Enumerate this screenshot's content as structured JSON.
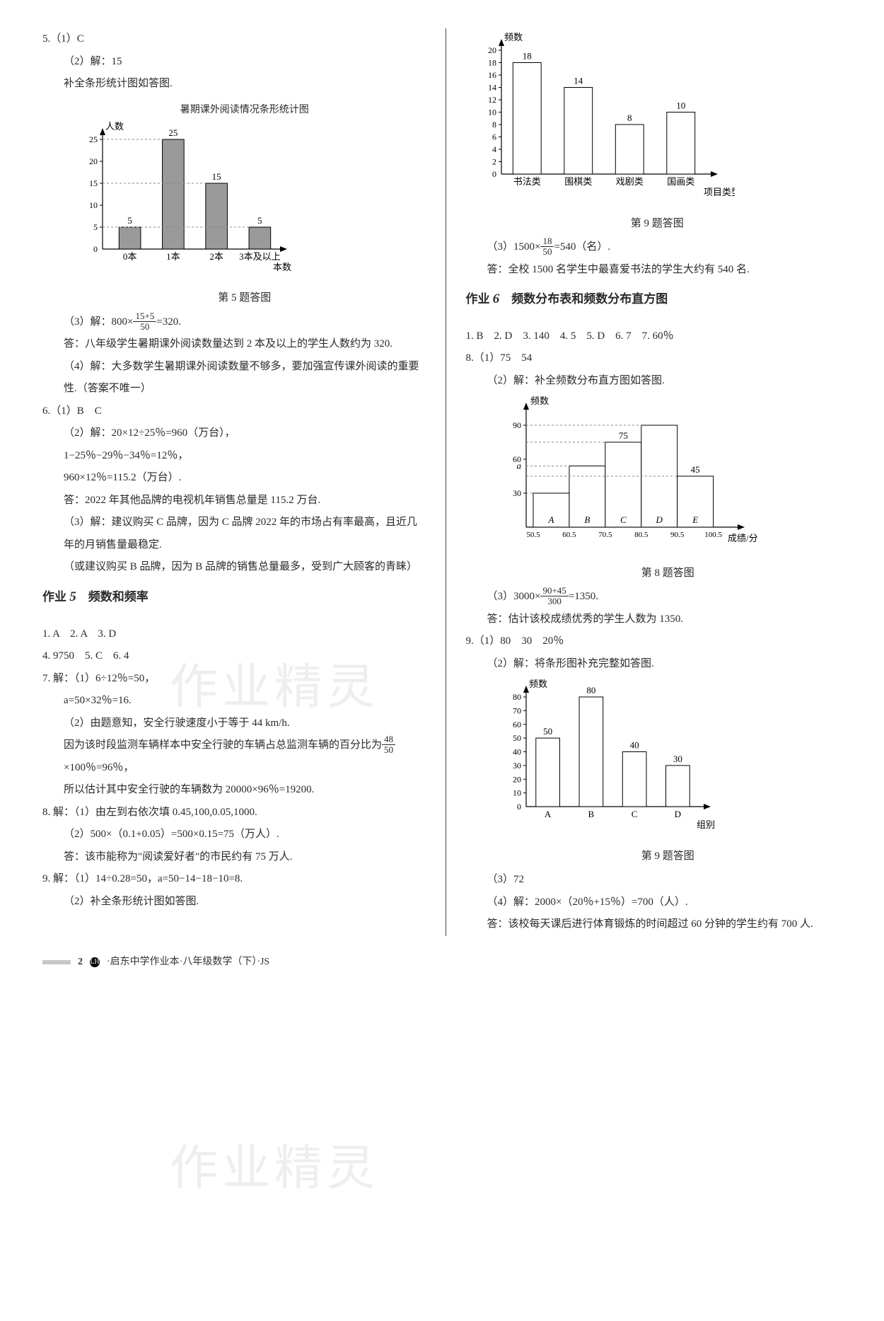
{
  "left": {
    "q5_1": "5.（1）C",
    "q5_2a": "（2）解：15",
    "q5_2b": "补全条形统计图如答图.",
    "chart5": {
      "title": "暑期课外阅读情况条形统计图",
      "y_label": "人数",
      "x_label": "本数",
      "y_max": 25,
      "y_ticks": [
        5,
        10,
        15,
        20,
        25
      ],
      "categories": [
        "0本",
        "1本",
        "2本",
        "3本及以上"
      ],
      "values": [
        5,
        25,
        15,
        5
      ],
      "bar_color": "#9a9a9a",
      "caption": "第 5 题答图"
    },
    "q5_3a": "（3）解：800×",
    "q5_3_frac_n": "15+5",
    "q5_3_frac_d": "50",
    "q5_3b": "=320.",
    "q5_3c": "答：八年级学生暑期课外阅读数量达到 2 本及以上的学生人数约为 320.",
    "q5_4": "（4）解：大多数学生暑期课外阅读数量不够多，要加强宣传课外阅读的重要性.（答案不唯一）",
    "q6_1": "6.（1）B　C",
    "q6_2a": "（2）解：20×12÷25％=960（万台），",
    "q6_2b": "1−25％−29％−34％=12％，",
    "q6_2c": "960×12％=115.2（万台）.",
    "q6_2d": "答：2022 年其他品牌的电视机年销售总量是 115.2 万台.",
    "q6_3a": "（3）解：建议购买 C 品牌，因为 C 品牌 2022 年的市场占有率最高，且近几年的月销售量最稳定.",
    "q6_3b": "（或建议购买 B 品牌，因为 B 品牌的销售总量最多，受到广大顾客的青睐）",
    "hw5_title_a": "作业",
    "hw5_title_num": "5",
    "hw5_title_b": "频数和频率",
    "hw5_line1": "1. A　2. A　3. D",
    "hw5_line2": "4. 9750　5. C　6. 4",
    "hw5_7a": "7. 解：（1）6÷12％=50，",
    "hw5_7b": "a=50×32％=16.",
    "hw5_7c": "（2）由题意知，安全行驶速度小于等于 44 km/h.",
    "hw5_7d": "因为该时段监测车辆样本中安全行驶的车辆占总监测车辆的百分比为",
    "hw5_7_frac_n": "48",
    "hw5_7_frac_d": "50",
    "hw5_7e": "×100％=96％，",
    "hw5_7f": "所以估计其中安全行驶的车辆数为 20000×96％=19200.",
    "hw5_8a": "8. 解：（1）由左到右依次填 0.45,100,0.05,1000.",
    "hw5_8b": "（2）500×（0.1+0.05）=500×0.15=75（万人）.",
    "hw5_8c": "答：该市能称为\"阅读爱好者\"的市民约有 75 万人.",
    "hw5_9a": "9. 解：（1）14÷0.28=50，a=50−14−18−10=8.",
    "hw5_9b": "（2）补全条形统计图如答图."
  },
  "right": {
    "chart9a": {
      "y_label": "频数",
      "x_label": "项目类型",
      "y_max": 20,
      "y_ticks": [
        2,
        4,
        6,
        8,
        10,
        12,
        14,
        16,
        18,
        20
      ],
      "categories": [
        "书法类",
        "围棋类",
        "戏剧类",
        "国画类"
      ],
      "values": [
        18,
        14,
        8,
        10
      ],
      "bar_color": "#ffffff",
      "caption": "第 9 题答图"
    },
    "q9_3a": "（3）1500×",
    "q9_3_frac_n": "18",
    "q9_3_frac_d": "50",
    "q9_3b": "=540（名）.",
    "q9_3c": "答：全校 1500 名学生中最喜爱书法的学生大约有 540 名.",
    "hw6_title_a": "作业",
    "hw6_title_num": "6",
    "hw6_title_b": "频数分布表和频数分布直方图",
    "hw6_line1": "1. B　2. D　3. 140　4. 5　5. D　6. 7　7. 60％",
    "hw6_8_1": "8.（1）75　54",
    "hw6_8_2": "（2）解：补全频数分布直方图如答图.",
    "chart8": {
      "y_label": "频数",
      "x_label": "成绩/分",
      "y_ticks_left": [
        "a",
        "30",
        "60",
        "90"
      ],
      "y_tick_vals": [
        54,
        30,
        60,
        90
      ],
      "top_labels": [
        "",
        "",
        "75",
        "",
        "45"
      ],
      "x_ticks": [
        "50.5",
        "60.5",
        "70.5",
        "80.5",
        "90.5",
        "100.5"
      ],
      "cat_letters": [
        "A",
        "B",
        "C",
        "D",
        "E"
      ],
      "values": [
        30,
        54,
        75,
        90,
        45
      ],
      "bar_color": "#ffffff",
      "caption": "第 8 题答图"
    },
    "hw6_8_3a": "（3）3000×",
    "hw6_8_3_frac_n": "90+45",
    "hw6_8_3_frac_d": "300",
    "hw6_8_3b": "=1350.",
    "hw6_8_3c": "答：估计该校成绩优秀的学生人数为 1350.",
    "hw6_9_1": "9.（1）80　30　20％",
    "hw6_9_2": "（2）解：将条形图补充完整如答图.",
    "chart9b": {
      "y_label": "频数",
      "x_label": "组别",
      "y_max": 80,
      "y_ticks": [
        10,
        20,
        30,
        40,
        50,
        60,
        70,
        80
      ],
      "categories": [
        "A",
        "B",
        "C",
        "D"
      ],
      "values": [
        50,
        80,
        40,
        30
      ],
      "bar_color": "#ffffff",
      "caption": "第 9 题答图"
    },
    "hw6_9_3": "（3）72",
    "hw6_9_4a": "（4）解：2000×（20％+15％）=700（人）.",
    "hw6_9_4b": "答：该校每天课后进行体育锻炼的时间超过 60 分钟的学生约有 700 人."
  },
  "footer": {
    "page": "2",
    "dot": "LH",
    "text": "·启东中学作业本·八年级数学（下）·JS"
  },
  "watermarks": [
    "作业精灵",
    "作业精灵"
  ]
}
